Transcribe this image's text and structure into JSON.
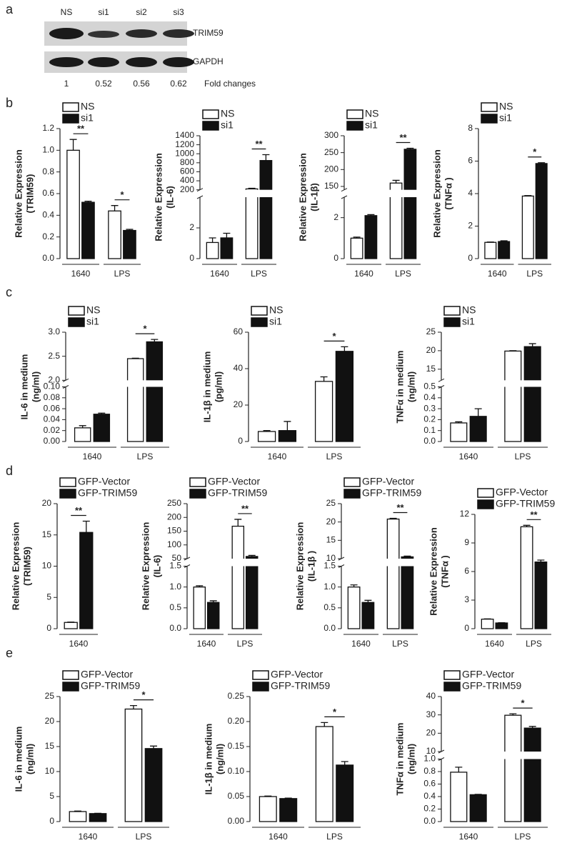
{
  "panel_labels": [
    "a",
    "b",
    "c",
    "d",
    "e"
  ],
  "blot": {
    "lanes": [
      "NS",
      "si1",
      "si2",
      "si3"
    ],
    "proteins": [
      "TRIM59",
      "GAPDH"
    ],
    "fold_changes": [
      1,
      0.52,
      0.56,
      0.62
    ],
    "fold_label": "Fold changes"
  },
  "chart_data": [
    {
      "type": "bar",
      "ylabel": [
        "Relative Expression",
        "(TRIM59)"
      ],
      "categories": [
        "1640",
        "LPS"
      ],
      "series": [
        {
          "name": "NS",
          "color": "#ffffff",
          "values": [
            1.0,
            0.44
          ],
          "errors": [
            0.1,
            0.05
          ]
        },
        {
          "name": "si1",
          "color": "#111111",
          "values": [
            0.52,
            0.26
          ],
          "errors": [
            0.01,
            0.01
          ]
        }
      ],
      "significance": [
        "**",
        "*"
      ],
      "ylim": [
        0,
        1.2
      ],
      "yticks": [
        {
          "value": 0,
          "label": "0.0"
        },
        0.2,
        0.4,
        0.6,
        0.8,
        {
          "value": 1,
          "label": "1.0"
        },
        1.2
      ]
    },
    {
      "type": "bar",
      "ylabel": [
        "Relative Expression",
        "(IL-6)"
      ],
      "categories": [
        "1640",
        "LPS"
      ],
      "series": [
        {
          "name": "NS",
          "color": "#ffffff",
          "values": [
            1.05,
            220
          ],
          "errors": [
            0.3,
            15
          ]
        },
        {
          "name": "si1",
          "color": "#111111",
          "values": [
            1.35,
            850
          ],
          "errors": [
            0.3,
            130
          ]
        }
      ],
      "significance": [
        null,
        "**"
      ],
      "segments": [
        {
          "ylim": [
            0,
            4
          ],
          "yticks": [
            0,
            2
          ]
        },
        {
          "ylim": [
            200,
            1400
          ],
          "yticks": [
            200,
            400,
            600,
            800,
            1000,
            1200,
            1400
          ]
        }
      ]
    },
    {
      "type": "bar",
      "ylabel": [
        "Relative Expression",
        "(IL-1β)"
      ],
      "categories": [
        "1640",
        "LPS"
      ],
      "series": [
        {
          "name": "NS",
          "color": "#ffffff",
          "values": [
            1.0,
            160
          ],
          "errors": [
            0.05,
            8
          ]
        },
        {
          "name": "si1",
          "color": "#111111",
          "values": [
            2.1,
            260
          ],
          "errors": [
            0.05,
            3
          ]
        }
      ],
      "significance": [
        null,
        "**"
      ],
      "segments": [
        {
          "ylim": [
            0,
            3
          ],
          "yticks": [
            0,
            2
          ]
        },
        {
          "ylim": [
            140,
            300
          ],
          "yticks": [
            150,
            200,
            250,
            300
          ]
        }
      ]
    },
    {
      "type": "bar",
      "ylabel": [
        "Relative Expression",
        "(TNFα )"
      ],
      "categories": [
        "1640",
        "LPS"
      ],
      "series": [
        {
          "name": "NS",
          "color": "#ffffff",
          "values": [
            1.0,
            3.85
          ],
          "errors": [
            0.02,
            0.03
          ]
        },
        {
          "name": "si1",
          "color": "#111111",
          "values": [
            1.05,
            5.85
          ],
          "errors": [
            0.05,
            0.05
          ]
        }
      ],
      "significance": [
        null,
        "*"
      ],
      "ylim": [
        0,
        8
      ],
      "yticks": [
        0,
        2,
        4,
        6,
        8
      ]
    },
    {
      "type": "bar",
      "ylabel": [
        "IL-6 in medium",
        "(ng/ml)"
      ],
      "categories": [
        "1640",
        "LPS"
      ],
      "series": [
        {
          "name": "NS",
          "color": "#ffffff",
          "values": [
            0.025,
            2.45
          ],
          "errors": [
            0.004,
            0.01
          ]
        },
        {
          "name": "si1",
          "color": "#111111",
          "values": [
            0.05,
            2.8
          ],
          "errors": [
            0.002,
            0.05
          ]
        }
      ],
      "significance": [
        null,
        "*"
      ],
      "segments": [
        {
          "ylim": [
            0,
            0.1
          ],
          "yticks": [
            {
              "value": 0,
              "label": "0.00"
            },
            0.02,
            0.04,
            0.06,
            0.08,
            {
              "value": 0.1,
              "label": "0.10"
            }
          ]
        },
        {
          "ylim": [
            2.0,
            3.0
          ],
          "yticks": [
            {
              "value": 2,
              "label": "2.0"
            },
            2.5,
            {
              "value": 3,
              "label": "3.0"
            }
          ]
        }
      ]
    },
    {
      "type": "bar",
      "ylabel": [
        "IL-1β  in medium",
        "(pg/ml)"
      ],
      "categories": [
        "1640",
        "LPS"
      ],
      "series": [
        {
          "name": "NS",
          "color": "#ffffff",
          "values": [
            5.5,
            33
          ],
          "errors": [
            0.5,
            2.5
          ]
        },
        {
          "name": "si1",
          "color": "#111111",
          "values": [
            6,
            49.5
          ],
          "errors": [
            5,
            2.5
          ]
        }
      ],
      "significance": [
        null,
        "*"
      ],
      "ylim": [
        0,
        60
      ],
      "yticks": [
        0,
        20,
        40,
        60
      ]
    },
    {
      "type": "bar",
      "ylabel": [
        "TNFα in medium",
        "(ng/ml)"
      ],
      "categories": [
        "1640",
        "LPS"
      ],
      "series": [
        {
          "name": "NS",
          "color": "#ffffff",
          "values": [
            0.17,
            19.9
          ],
          "errors": [
            0.01,
            0.1
          ]
        },
        {
          "name": "si1",
          "color": "#111111",
          "values": [
            0.23,
            21.1
          ],
          "errors": [
            0.07,
            0.8
          ]
        }
      ],
      "segments": [
        {
          "ylim": [
            0,
            0.5
          ],
          "yticks": [
            {
              "value": 0,
              "label": "0.0"
            },
            0.1,
            0.2,
            0.3,
            0.4,
            0.5
          ]
        },
        {
          "ylim": [
            12,
            25
          ],
          "yticks": [
            15,
            20,
            25
          ]
        }
      ]
    },
    {
      "type": "bar",
      "ylabel": [
        "Relative Expression",
        "(TRIM59)"
      ],
      "categories": [
        "1640"
      ],
      "series": [
        {
          "name": "GFP-Vector",
          "color": "#ffffff",
          "values": [
            1.0
          ],
          "errors": [
            0.05
          ]
        },
        {
          "name": "GFP-TRIM59",
          "color": "#111111",
          "values": [
            15.4
          ],
          "errors": [
            1.8
          ]
        }
      ],
      "significance": [
        "**"
      ],
      "ylim": [
        0,
        20
      ],
      "yticks": [
        0,
        5,
        10,
        15,
        20
      ]
    },
    {
      "type": "bar",
      "ylabel": [
        "Relative Expression",
        "(IL-6)"
      ],
      "categories": [
        "1640",
        "LPS"
      ],
      "series": [
        {
          "name": "GFP-Vector",
          "color": "#ffffff",
          "values": [
            1.0,
            168
          ],
          "errors": [
            0.03,
            25
          ]
        },
        {
          "name": "GFP-TRIM59",
          "color": "#111111",
          "values": [
            0.63,
            58
          ],
          "errors": [
            0.04,
            4
          ]
        }
      ],
      "significance": [
        null,
        "**"
      ],
      "segments": [
        {
          "ylim": [
            0,
            1.5
          ],
          "yticks": [
            {
              "value": 0,
              "label": "0.0"
            },
            0.5,
            {
              "value": 1,
              "label": "1.0"
            },
            1.5
          ]
        },
        {
          "ylim": [
            50,
            250
          ],
          "yticks": [
            50,
            100,
            150,
            200,
            250
          ]
        }
      ]
    },
    {
      "type": "bar",
      "ylabel": [
        "Relative Expression",
        "(IL-1β )"
      ],
      "categories": [
        "1640",
        "LPS"
      ],
      "series": [
        {
          "name": "GFP-Vector",
          "color": "#ffffff",
          "values": [
            1.0,
            20.8
          ],
          "errors": [
            0.05,
            0.2
          ]
        },
        {
          "name": "GFP-TRIM59",
          "color": "#111111",
          "values": [
            0.63,
            10.5
          ],
          "errors": [
            0.05,
            0.2
          ]
        }
      ],
      "significance": [
        null,
        "**"
      ],
      "segments": [
        {
          "ylim": [
            0,
            1.5
          ],
          "yticks": [
            {
              "value": 0,
              "label": "0.0"
            },
            0.5,
            {
              "value": 1,
              "label": "1.0"
            },
            1.5
          ]
        },
        {
          "ylim": [
            10,
            25
          ],
          "yticks": [
            10,
            15,
            20,
            25
          ]
        }
      ]
    },
    {
      "type": "bar",
      "ylabel": [
        "Relative Expression",
        "(TNFα )"
      ],
      "categories": [
        "1640",
        "LPS"
      ],
      "series": [
        {
          "name": "GFP-Vector",
          "color": "#ffffff",
          "values": [
            1.0,
            10.7
          ],
          "errors": [
            0.03,
            0.15
          ]
        },
        {
          "name": "GFP-TRIM59",
          "color": "#111111",
          "values": [
            0.6,
            7.0
          ],
          "errors": [
            0.03,
            0.2
          ]
        }
      ],
      "significance": [
        null,
        "**"
      ],
      "ylim": [
        0,
        12
      ],
      "yticks": [
        0,
        3,
        6,
        9,
        12
      ]
    },
    {
      "type": "bar",
      "ylabel": [
        "IL-6 in medium",
        "(ng/ml)"
      ],
      "categories": [
        "1640",
        "LPS"
      ],
      "series": [
        {
          "name": "GFP-Vector",
          "color": "#ffffff",
          "values": [
            2.0,
            22.5
          ],
          "errors": [
            0.1,
            0.7
          ]
        },
        {
          "name": "GFP-TRIM59",
          "color": "#111111",
          "values": [
            1.6,
            14.6
          ],
          "errors": [
            0.05,
            0.5
          ]
        }
      ],
      "significance": [
        null,
        "*"
      ],
      "ylim": [
        0,
        25
      ],
      "yticks": [
        0,
        5,
        10,
        15,
        20,
        25
      ]
    },
    {
      "type": "bar",
      "ylabel": [
        "IL-1β  in medium",
        "(ng/ml)"
      ],
      "categories": [
        "1640",
        "LPS"
      ],
      "series": [
        {
          "name": "GFP-Vector",
          "color": "#ffffff",
          "values": [
            0.05,
            0.19
          ],
          "errors": [
            0.001,
            0.008
          ]
        },
        {
          "name": "GFP-TRIM59",
          "color": "#111111",
          "values": [
            0.046,
            0.113
          ],
          "errors": [
            0.001,
            0.007
          ]
        }
      ],
      "significance": [
        null,
        "*"
      ],
      "ylim": [
        0,
        0.25
      ],
      "yticks": [
        {
          "value": 0,
          "label": "0.00"
        },
        0.05,
        {
          "value": 0.1,
          "label": "0.10"
        },
        0.15,
        {
          "value": 0.2,
          "label": "0.20"
        },
        0.25
      ]
    },
    {
      "type": "bar",
      "ylabel": [
        "TNFα in medium",
        "(ng/ml)"
      ],
      "categories": [
        "1640",
        "LPS"
      ],
      "series": [
        {
          "name": "GFP-Vector",
          "color": "#ffffff",
          "values": [
            0.79,
            29.8
          ],
          "errors": [
            0.08,
            0.8
          ]
        },
        {
          "name": "GFP-TRIM59",
          "color": "#111111",
          "values": [
            0.43,
            22.8
          ],
          "errors": [
            0.005,
            0.9
          ]
        }
      ],
      "significance": [
        null,
        "*"
      ],
      "segments": [
        {
          "ylim": [
            0,
            1.0
          ],
          "yticks": [
            {
              "value": 0,
              "label": "0.0"
            },
            0.2,
            0.4,
            0.6,
            0.8,
            {
              "value": 1,
              "label": "1.0"
            }
          ]
        },
        {
          "ylim": [
            10,
            40
          ],
          "yticks": [
            10,
            20,
            30,
            40
          ]
        }
      ]
    }
  ]
}
